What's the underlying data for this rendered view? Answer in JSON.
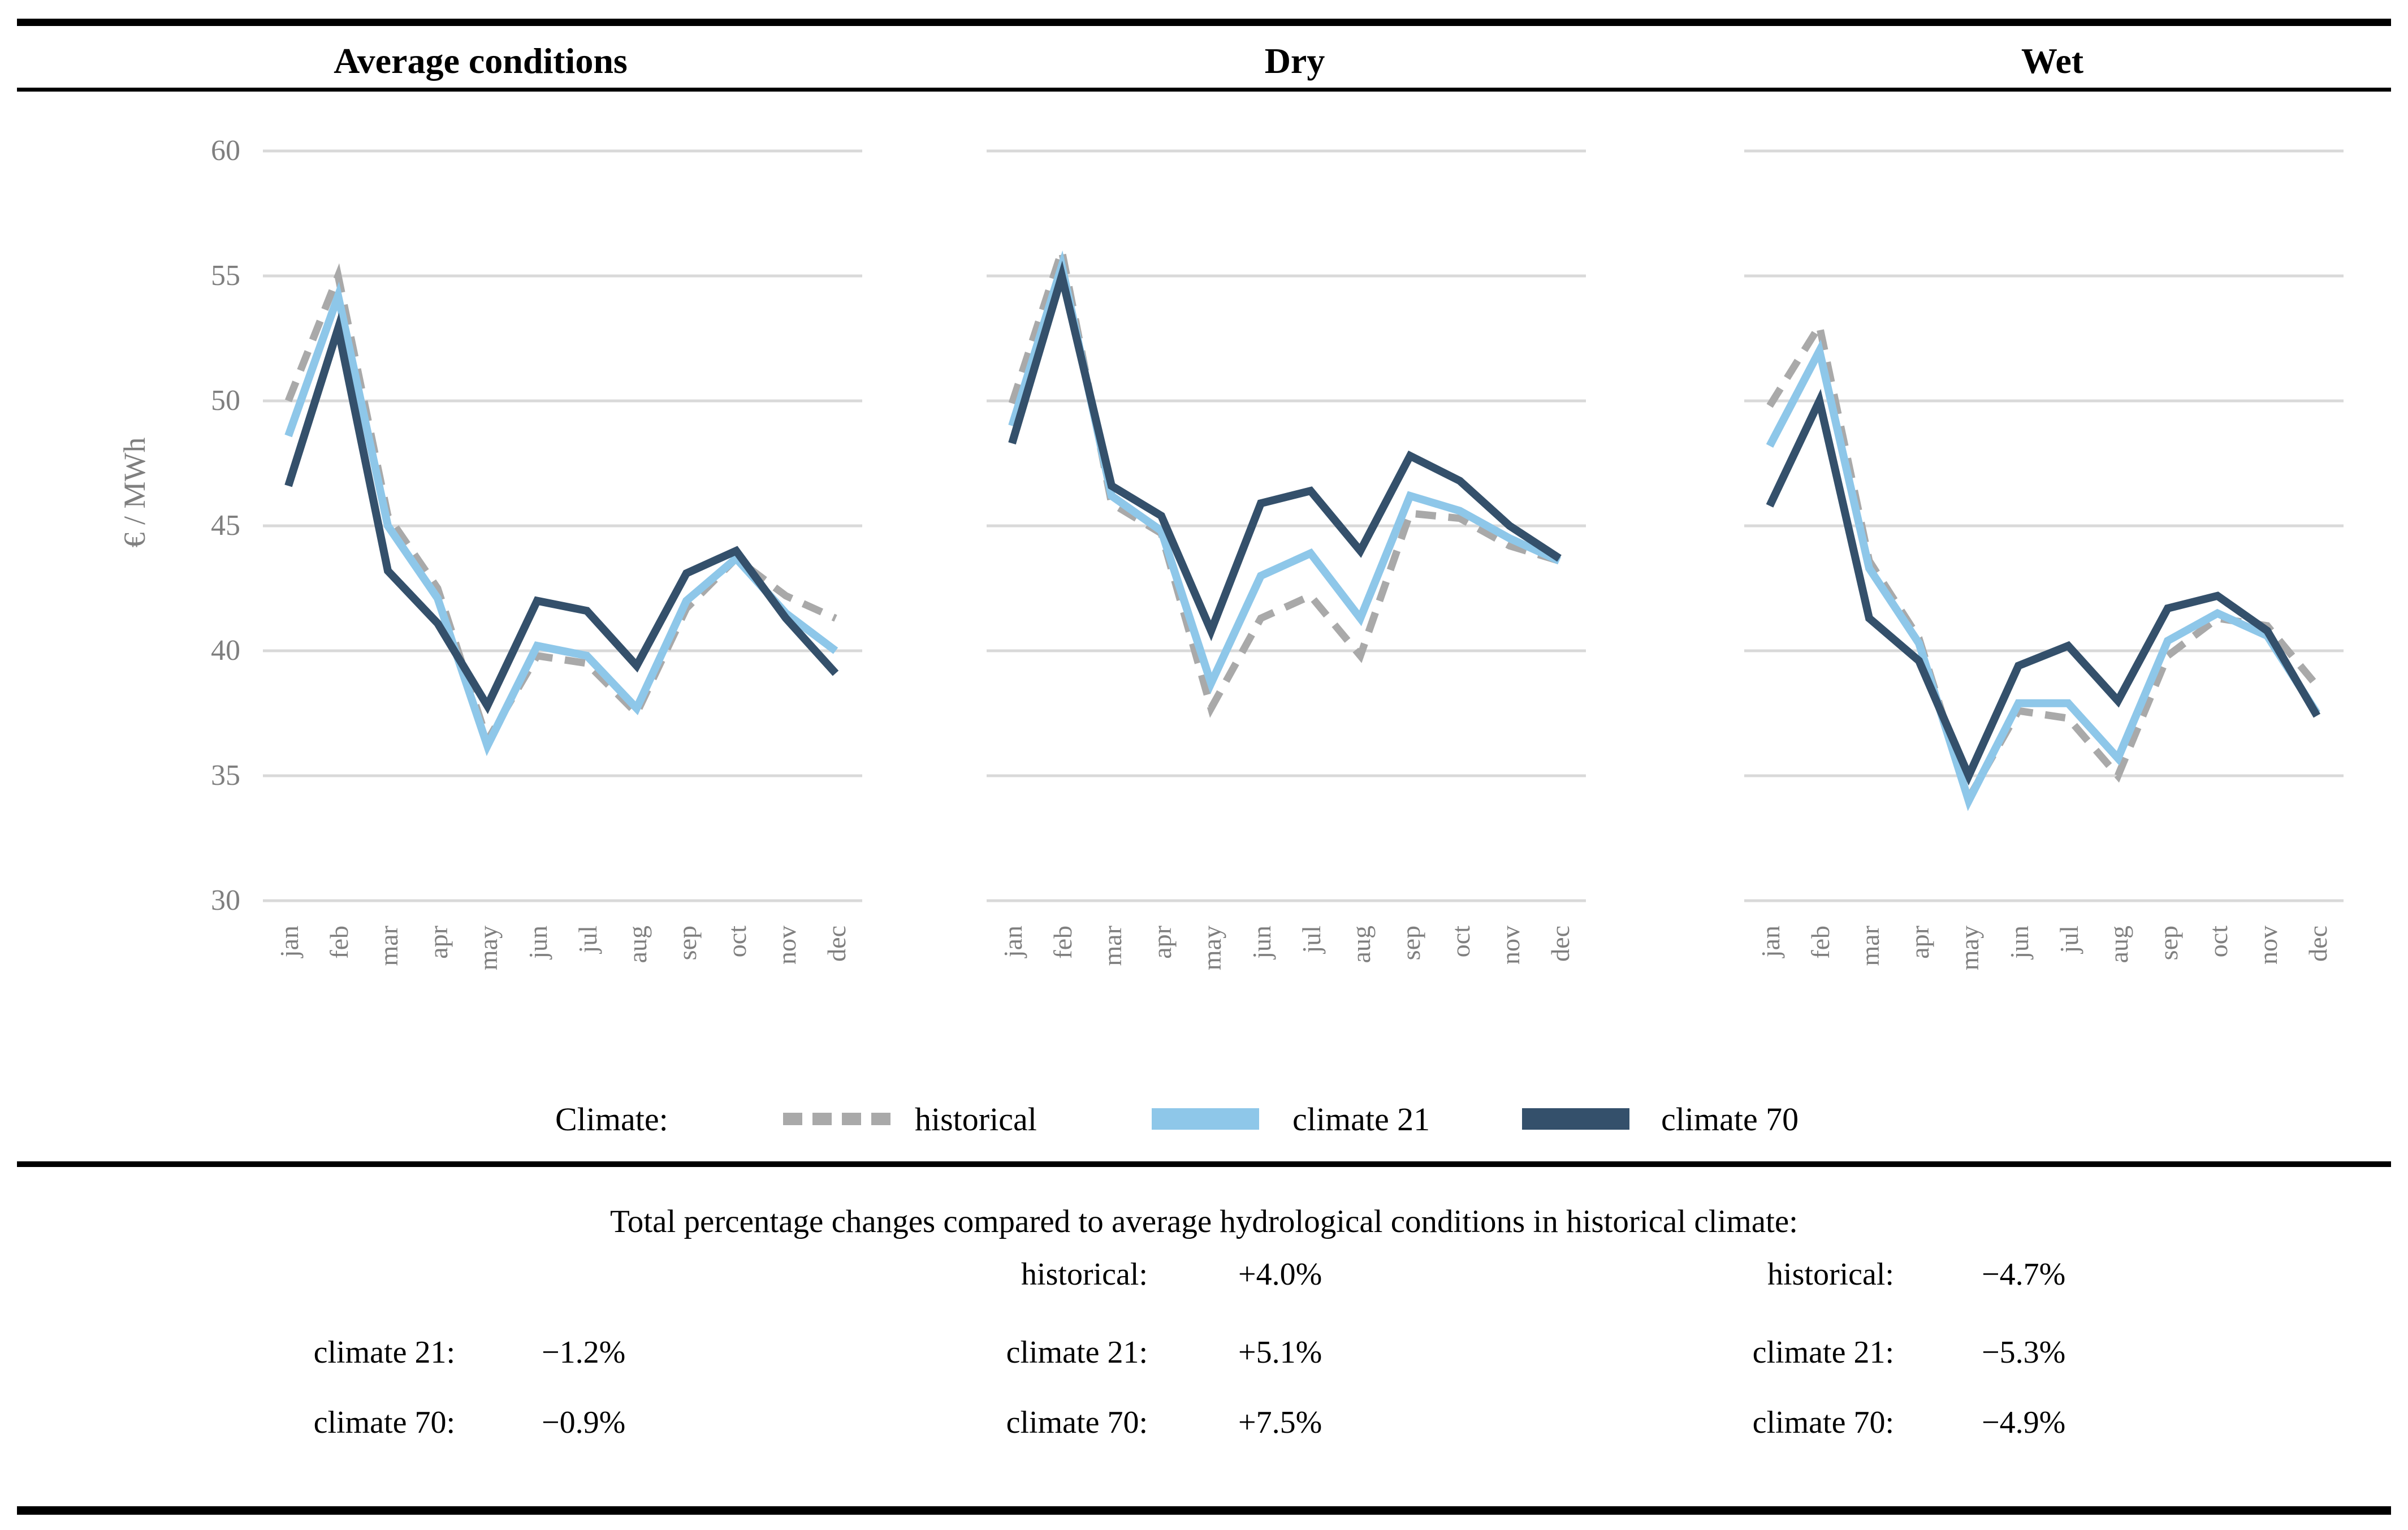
{
  "figure": {
    "column_headers": [
      "Average conditions",
      "Dry",
      "Wet"
    ],
    "y_axis_title": "€ / MWh",
    "y_ticks": [
      60,
      55,
      50,
      45,
      40,
      35,
      30
    ],
    "months": [
      "jan",
      "feb",
      "mar",
      "apr",
      "may",
      "jun",
      "jul",
      "aug",
      "sep",
      "oct",
      "nov",
      "dec"
    ]
  },
  "colors": {
    "historical": "#A9A9A9",
    "climate_21": "#8EC7E9",
    "climate_70": "#34506B",
    "gridline": "#D9D9D9",
    "axis_text": "#7F7F7F",
    "rule": "#000000"
  },
  "legend": {
    "label": "Climate:",
    "items": [
      {
        "label": "historical",
        "style": "dashed",
        "color": "#A9A9A9"
      },
      {
        "label": "climate 21",
        "style": "solid",
        "color": "#8EC7E9"
      },
      {
        "label": "climate 70",
        "style": "solid",
        "color": "#34506B"
      }
    ]
  },
  "chart_data": [
    {
      "type": "line",
      "title": "Average conditions",
      "ylabel": "€ / MWh",
      "ylim": [
        30,
        60
      ],
      "grid": true,
      "categories": [
        "jan",
        "feb",
        "mar",
        "apr",
        "may",
        "jun",
        "jul",
        "aug",
        "sep",
        "oct",
        "nov",
        "dec"
      ],
      "series": [
        {
          "name": "historical",
          "color": "#A9A9A9",
          "dashed": true,
          "values": [
            50.0,
            55.0,
            45.4,
            42.5,
            36.4,
            39.8,
            39.5,
            37.5,
            41.7,
            43.7,
            42.2,
            41.3
          ]
        },
        {
          "name": "climate 21",
          "color": "#8EC7E9",
          "dashed": false,
          "values": [
            48.6,
            54.2,
            45.0,
            42.1,
            36.2,
            40.2,
            39.8,
            37.7,
            42.0,
            43.7,
            41.5,
            40.0
          ]
        },
        {
          "name": "climate 70",
          "color": "#34506B",
          "dashed": false,
          "values": [
            46.6,
            52.9,
            43.2,
            41.1,
            37.8,
            42.0,
            41.6,
            39.4,
            43.1,
            44.0,
            41.3,
            39.1
          ]
        }
      ]
    },
    {
      "type": "line",
      "title": "Dry",
      "ylabel": "€ / MWh",
      "ylim": [
        30,
        60
      ],
      "grid": true,
      "categories": [
        "jan",
        "feb",
        "mar",
        "apr",
        "may",
        "jun",
        "jul",
        "aug",
        "sep",
        "oct",
        "nov",
        "dec"
      ],
      "series": [
        {
          "name": "historical",
          "color": "#A9A9A9",
          "dashed": true,
          "values": [
            49.9,
            56.0,
            45.9,
            44.7,
            37.7,
            41.3,
            42.2,
            39.8,
            45.5,
            45.3,
            44.2,
            43.6
          ]
        },
        {
          "name": "climate 21",
          "color": "#8EC7E9",
          "dashed": false,
          "values": [
            49.0,
            55.4,
            46.2,
            44.8,
            38.7,
            43.0,
            43.9,
            41.3,
            46.2,
            45.6,
            44.5,
            43.6
          ]
        },
        {
          "name": "climate 70",
          "color": "#34506B",
          "dashed": false,
          "values": [
            48.3,
            55.0,
            46.6,
            45.4,
            40.8,
            45.9,
            46.4,
            44.0,
            47.8,
            46.8,
            45.0,
            43.7
          ]
        }
      ]
    },
    {
      "type": "line",
      "title": "Wet",
      "ylabel": "€ / MWh",
      "ylim": [
        30,
        60
      ],
      "grid": true,
      "categories": [
        "jan",
        "feb",
        "mar",
        "apr",
        "may",
        "jun",
        "jul",
        "aug",
        "sep",
        "oct",
        "nov",
        "dec"
      ],
      "series": [
        {
          "name": "historical",
          "color": "#A9A9A9",
          "dashed": true,
          "values": [
            49.8,
            53.0,
            43.6,
            40.5,
            34.1,
            37.6,
            37.3,
            35.0,
            39.8,
            41.3,
            41.0,
            38.6
          ]
        },
        {
          "name": "climate 21",
          "color": "#8EC7E9",
          "dashed": false,
          "values": [
            48.2,
            52.0,
            43.3,
            40.3,
            34.0,
            37.9,
            37.9,
            35.7,
            40.4,
            41.5,
            40.6,
            37.5
          ]
        },
        {
          "name": "climate 70",
          "color": "#34506B",
          "dashed": false,
          "values": [
            45.8,
            50.0,
            41.3,
            39.6,
            35.0,
            39.4,
            40.2,
            38.0,
            41.7,
            42.2,
            40.8,
            37.4
          ]
        }
      ]
    }
  ],
  "stats": {
    "title": "Total percentage changes compared to average hydrological conditions in historical climate:",
    "rows": [
      {
        "column": 2,
        "label": "historical:",
        "value": "+4.0%"
      },
      {
        "column": 3,
        "label": "historical:",
        "value": "−4.7%"
      },
      {
        "column": 1,
        "label": "climate 21:",
        "value": "−1.2%"
      },
      {
        "column": 2,
        "label": "climate 21:",
        "value": "+5.1%"
      },
      {
        "column": 3,
        "label": "climate 21:",
        "value": "−5.3%"
      },
      {
        "column": 1,
        "label": "climate 70:",
        "value": "−0.9%"
      },
      {
        "column": 2,
        "label": "climate 70:",
        "value": "+7.5%"
      },
      {
        "column": 3,
        "label": "climate 70:",
        "value": "−4.9%"
      }
    ]
  }
}
